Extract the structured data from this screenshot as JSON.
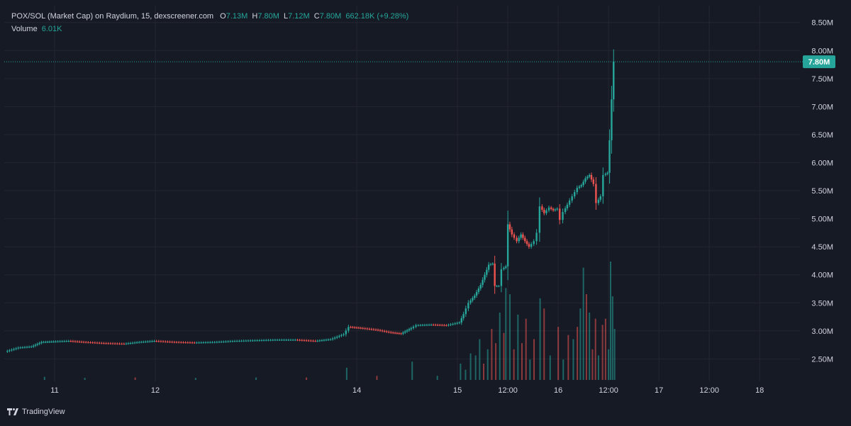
{
  "legend": {
    "title": "POX/SOL (Market Cap) on Raydium, 15, dexscreener.com",
    "open_key": "O",
    "open": "7.13M",
    "high_key": "H",
    "high": "7.80M",
    "low_key": "L",
    "low": "7.12M",
    "close_key": "C",
    "close": "7.80M",
    "change": "662.18K (+9.28%)",
    "volume_label": "Volume",
    "volume_value": "6.01K"
  },
  "footer": {
    "brand": "TradingView",
    "brand_icon": "tradingview-logo-icon"
  },
  "colors": {
    "background": "#161a25",
    "grid": "#232632",
    "up": "#26a69a",
    "down": "#ef5350",
    "text": "#d1d4dc",
    "price_tag": "#26a69a"
  },
  "chart_data": {
    "type": "candlestick",
    "x_unit": "day-of-month",
    "x_range": [
      10.5,
      18.4
    ],
    "x_ticks": [
      {
        "x": 11,
        "label": "11"
      },
      {
        "x": 12,
        "label": "12"
      },
      {
        "x": 14,
        "label": "14"
      },
      {
        "x": 15,
        "label": "15"
      },
      {
        "x": 15.5,
        "label": "12:00"
      },
      {
        "x": 16,
        "label": "16"
      },
      {
        "x": 16.5,
        "label": "12:00"
      },
      {
        "x": 17,
        "label": "17"
      },
      {
        "x": 17.5,
        "label": "12:00"
      },
      {
        "x": 18,
        "label": "18"
      }
    ],
    "y_unit": "millions",
    "y_range": [
      2.1,
      8.8
    ],
    "y_ticks": [
      {
        "value": 2.5,
        "label": "2.50M"
      },
      {
        "value": 3.0,
        "label": "3.00M"
      },
      {
        "value": 3.5,
        "label": "3.50M"
      },
      {
        "value": 4.0,
        "label": "4.00M"
      },
      {
        "value": 4.5,
        "label": "4.50M"
      },
      {
        "value": 5.0,
        "label": "5.00M"
      },
      {
        "value": 5.5,
        "label": "5.50M"
      },
      {
        "value": 6.0,
        "label": "6.00M"
      },
      {
        "value": 6.5,
        "label": "6.50M"
      },
      {
        "value": 7.0,
        "label": "7.00M"
      },
      {
        "value": 7.5,
        "label": "7.50M"
      },
      {
        "value": 8.0,
        "label": "8.00M"
      },
      {
        "value": 8.5,
        "label": "8.50M"
      }
    ],
    "last_price": {
      "value": 7.8,
      "label": "7.80M"
    },
    "grid": true,
    "price_path": [
      [
        10.52,
        2.63
      ],
      [
        10.65,
        2.7
      ],
      [
        10.78,
        2.72
      ],
      [
        10.88,
        2.8
      ],
      [
        11.0,
        2.81
      ],
      [
        11.15,
        2.82
      ],
      [
        11.3,
        2.8
      ],
      [
        11.5,
        2.78
      ],
      [
        11.7,
        2.77
      ],
      [
        11.85,
        2.8
      ],
      [
        12.0,
        2.82
      ],
      [
        12.2,
        2.8
      ],
      [
        12.4,
        2.79
      ],
      [
        12.6,
        2.8
      ],
      [
        12.8,
        2.82
      ],
      [
        13.0,
        2.83
      ],
      [
        13.2,
        2.84
      ],
      [
        13.4,
        2.84
      ],
      [
        13.6,
        2.82
      ],
      [
        13.75,
        2.85
      ],
      [
        13.88,
        2.94
      ],
      [
        13.93,
        3.07
      ],
      [
        14.05,
        3.05
      ],
      [
        14.2,
        3.02
      ],
      [
        14.35,
        2.97
      ],
      [
        14.45,
        2.95
      ],
      [
        14.55,
        3.05
      ],
      [
        14.6,
        3.1
      ],
      [
        14.75,
        3.11
      ],
      [
        14.9,
        3.1
      ],
      [
        15.03,
        3.15
      ],
      [
        15.07,
        3.3
      ],
      [
        15.12,
        3.5
      ],
      [
        15.18,
        3.63
      ],
      [
        15.24,
        3.82
      ],
      [
        15.28,
        4.0
      ],
      [
        15.32,
        4.18
      ],
      [
        15.36,
        4.2
      ],
      [
        15.38,
        3.8
      ],
      [
        15.42,
        3.8
      ],
      [
        15.45,
        4.1
      ],
      [
        15.49,
        4.15
      ],
      [
        15.51,
        4.9
      ],
      [
        15.55,
        4.72
      ],
      [
        15.6,
        4.6
      ],
      [
        15.64,
        4.72
      ],
      [
        15.68,
        4.6
      ],
      [
        15.72,
        4.5
      ],
      [
        15.77,
        4.6
      ],
      [
        15.8,
        4.75
      ],
      [
        15.83,
        5.22
      ],
      [
        15.87,
        5.1
      ],
      [
        15.92,
        5.2
      ],
      [
        15.96,
        5.15
      ],
      [
        16.0,
        5.18
      ],
      [
        16.03,
        4.98
      ],
      [
        16.06,
        5.12
      ],
      [
        16.1,
        5.25
      ],
      [
        16.15,
        5.4
      ],
      [
        16.2,
        5.55
      ],
      [
        16.24,
        5.6
      ],
      [
        16.28,
        5.72
      ],
      [
        16.32,
        5.78
      ],
      [
        16.36,
        5.62
      ],
      [
        16.39,
        5.28
      ],
      [
        16.43,
        5.4
      ],
      [
        16.46,
        5.78
      ],
      [
        16.5,
        5.82
      ],
      [
        16.52,
        6.4
      ],
      [
        16.54,
        7.13
      ],
      [
        16.56,
        7.8
      ]
    ],
    "volume_bars": [
      {
        "x": 10.9,
        "v": 0.015,
        "dir": "up"
      },
      {
        "x": 11.3,
        "v": 0.01,
        "dir": "up"
      },
      {
        "x": 11.8,
        "v": 0.012,
        "dir": "down"
      },
      {
        "x": 12.4,
        "v": 0.01,
        "dir": "up"
      },
      {
        "x": 13.0,
        "v": 0.012,
        "dir": "up"
      },
      {
        "x": 13.5,
        "v": 0.012,
        "dir": "down"
      },
      {
        "x": 13.9,
        "v": 0.06,
        "dir": "up"
      },
      {
        "x": 14.2,
        "v": 0.02,
        "dir": "down"
      },
      {
        "x": 14.55,
        "v": 0.09,
        "dir": "up"
      },
      {
        "x": 14.8,
        "v": 0.02,
        "dir": "up"
      },
      {
        "x": 15.03,
        "v": 0.08,
        "dir": "up"
      },
      {
        "x": 15.08,
        "v": 0.05,
        "dir": "up"
      },
      {
        "x": 15.13,
        "v": 0.13,
        "dir": "up"
      },
      {
        "x": 15.18,
        "v": 0.12,
        "dir": "up"
      },
      {
        "x": 15.22,
        "v": 0.2,
        "dir": "up"
      },
      {
        "x": 15.26,
        "v": 0.08,
        "dir": "down"
      },
      {
        "x": 15.3,
        "v": 0.15,
        "dir": "up"
      },
      {
        "x": 15.34,
        "v": 0.25,
        "dir": "down"
      },
      {
        "x": 15.38,
        "v": 0.18,
        "dir": "down"
      },
      {
        "x": 15.42,
        "v": 0.33,
        "dir": "up"
      },
      {
        "x": 15.46,
        "v": 0.23,
        "dir": "down"
      },
      {
        "x": 15.48,
        "v": 0.45,
        "dir": "up"
      },
      {
        "x": 15.52,
        "v": 0.42,
        "dir": "up"
      },
      {
        "x": 15.56,
        "v": 0.15,
        "dir": "down"
      },
      {
        "x": 15.6,
        "v": 0.32,
        "dir": "up"
      },
      {
        "x": 15.64,
        "v": 0.18,
        "dir": "down"
      },
      {
        "x": 15.68,
        "v": 0.3,
        "dir": "down"
      },
      {
        "x": 15.72,
        "v": 0.1,
        "dir": "up"
      },
      {
        "x": 15.76,
        "v": 0.2,
        "dir": "down"
      },
      {
        "x": 15.82,
        "v": 0.4,
        "dir": "up"
      },
      {
        "x": 15.86,
        "v": 0.35,
        "dir": "down"
      },
      {
        "x": 15.92,
        "v": 0.12,
        "dir": "up"
      },
      {
        "x": 16.0,
        "v": 0.26,
        "dir": "down"
      },
      {
        "x": 16.05,
        "v": 0.1,
        "dir": "up"
      },
      {
        "x": 16.1,
        "v": 0.22,
        "dir": "down"
      },
      {
        "x": 16.15,
        "v": 0.2,
        "dir": "up"
      },
      {
        "x": 16.19,
        "v": 0.26,
        "dir": "down"
      },
      {
        "x": 16.22,
        "v": 0.35,
        "dir": "up"
      },
      {
        "x": 16.25,
        "v": 0.55,
        "dir": "up"
      },
      {
        "x": 16.28,
        "v": 0.42,
        "dir": "down"
      },
      {
        "x": 16.31,
        "v": 0.33,
        "dir": "up"
      },
      {
        "x": 16.34,
        "v": 0.15,
        "dir": "down"
      },
      {
        "x": 16.37,
        "v": 0.3,
        "dir": "down"
      },
      {
        "x": 16.4,
        "v": 0.12,
        "dir": "up"
      },
      {
        "x": 16.44,
        "v": 0.27,
        "dir": "down"
      },
      {
        "x": 16.47,
        "v": 0.3,
        "dir": "down"
      },
      {
        "x": 16.5,
        "v": 0.15,
        "dir": "up"
      },
      {
        "x": 16.52,
        "v": 0.58,
        "dir": "up"
      },
      {
        "x": 16.54,
        "v": 0.41,
        "dir": "up"
      },
      {
        "x": 16.56,
        "v": 0.25,
        "dir": "up"
      }
    ],
    "volume_max_label": "",
    "legend_position": "top-left"
  }
}
